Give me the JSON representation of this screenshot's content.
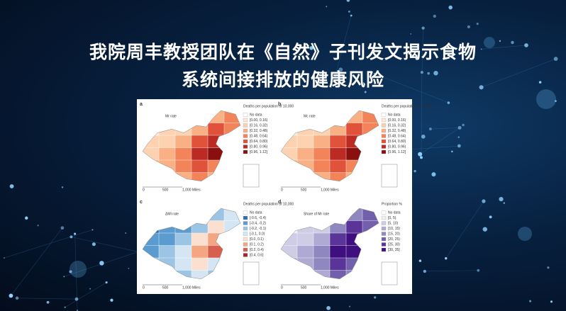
{
  "title": [
    "我院周丰教授团队在《自然》子刊发文揭示食物",
    "系统间接排放的健康风险"
  ],
  "figure": {
    "panels": [
      {
        "label": "a",
        "map_title": "Mr rate",
        "legend_title": "Deaths per population of 10,000",
        "legend": [
          "No data",
          "[0.00, 0.16)",
          "[0.16, 0.32)",
          "[0.32, 0.48)",
          "[0.48, 0.64)",
          "[0.64, 0.80)",
          "[0.80, 0.96)",
          "[0.96, 1.12]"
        ],
        "colors": [
          "#ffffff",
          "#fde9d6",
          "#fcd2b0",
          "#f9b084",
          "#f38358",
          "#e0523a",
          "#bb2a23",
          "#8a1010"
        ],
        "scale": [
          "0",
          "500",
          "1,000 Miles"
        ]
      },
      {
        "label": "b",
        "map_title": "Mc rate",
        "legend_title": "Deaths per population of 10,000",
        "legend": [
          "No data",
          "[0.00, 0.16)",
          "[0.16, 0.32)",
          "[0.32, 0.48)",
          "[0.48, 0.64)",
          "[0.64, 0.80)",
          "[0.80, 0.96)",
          "[0.96, 1.12]"
        ],
        "colors": [
          "#ffffff",
          "#fde9d6",
          "#fcd2b0",
          "#f9b084",
          "#f38358",
          "#e0523a",
          "#bb2a23",
          "#8a1010"
        ],
        "scale": [
          "0",
          "500",
          "1,000 Miles"
        ]
      },
      {
        "label": "c",
        "map_title": "ΔMI rate",
        "legend_title": "Deaths per population of 10,000",
        "legend": [
          "No data",
          "[-0.6, -0.4)",
          "[-0.4, -0.2)",
          "[-0.2, -0.1)",
          "[-0.1, 0.0)",
          "[0.0, 0.1)",
          "[0.1, 0.2)",
          "[0.2, 0.4)",
          "[0.4, 0.6]"
        ],
        "colors": [
          "#ffffff",
          "#2c6fad",
          "#5c9bd0",
          "#9cc4e4",
          "#d4e6f3",
          "#fbe0d0",
          "#f4a582",
          "#d6604d",
          "#a8222a"
        ],
        "scale": [
          "0",
          "500",
          "1,000 Miles"
        ]
      },
      {
        "label": "d",
        "map_title": "Share of Mr rate",
        "legend_title": "Proportion %",
        "legend": [
          "No data",
          "[0, 5)",
          "[5, 10)",
          "[10, 15)",
          "[15, 20)",
          "[20, 25)",
          "[25, 30)",
          "[30, 35]"
        ],
        "colors": [
          "#ffffff",
          "#efedf5",
          "#cfcce6",
          "#aeaad3",
          "#8f88c0",
          "#7260ac",
          "#5a3499",
          "#3f0f80"
        ],
        "scale": [
          "0",
          "500",
          "1,000 Miles"
        ]
      }
    ]
  }
}
